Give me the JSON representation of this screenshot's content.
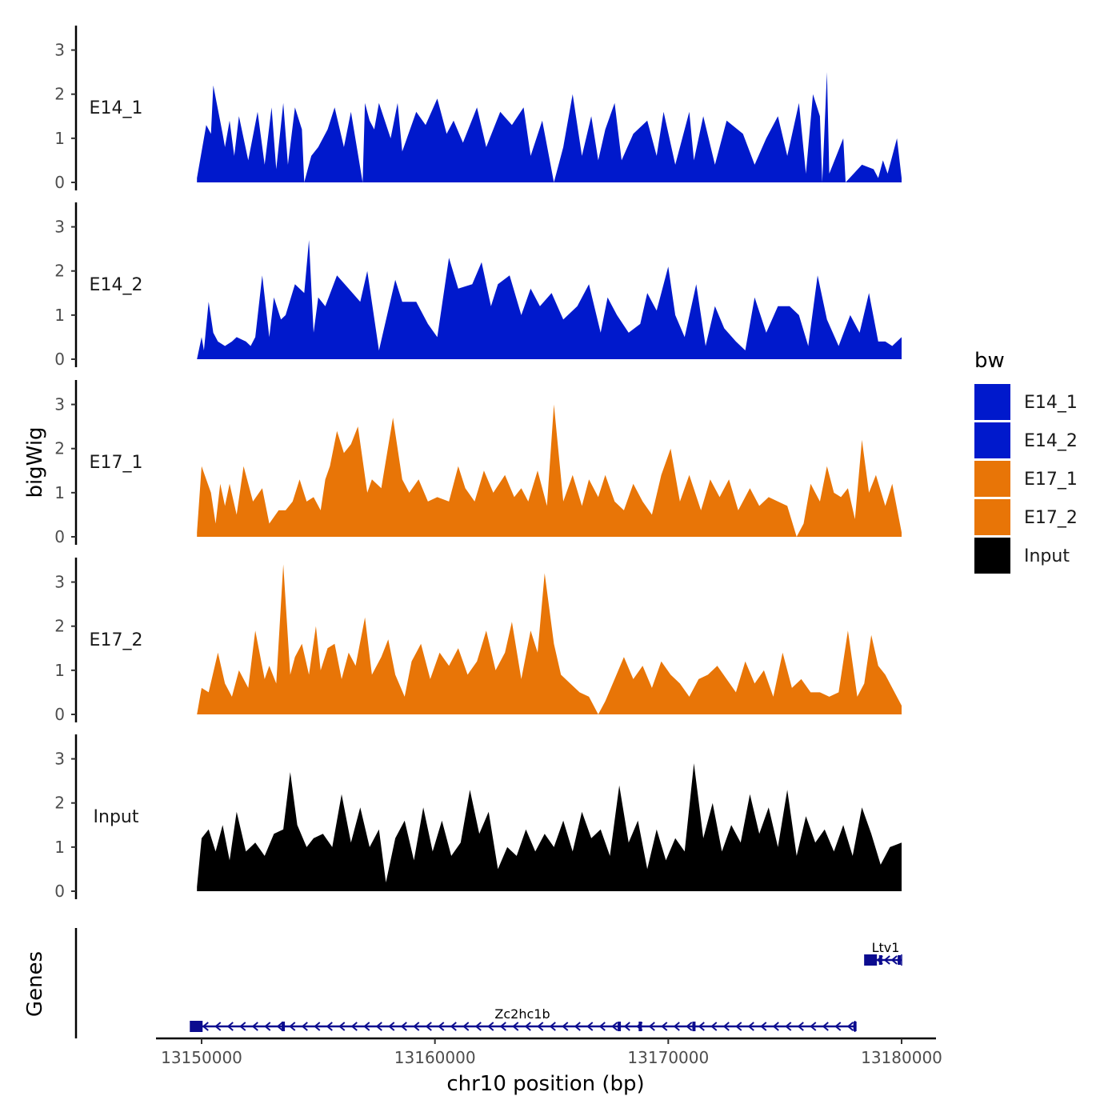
{
  "chart_data": {
    "type": "area",
    "xlabel": "chr10 position (bp)",
    "ylabel": "bigWig",
    "gene_track_label": "Genes",
    "xlim": [
      13149800,
      13180000
    ],
    "ylim": [
      0,
      3.5
    ],
    "x_ticks": [
      13150000,
      13160000,
      13170000,
      13180000
    ],
    "x_tick_labels": [
      "13150000",
      "13160000",
      "13170000",
      "13180000"
    ],
    "y_ticks": [
      0,
      1,
      2,
      3
    ],
    "y_tick_labels": [
      "0",
      "1",
      "2",
      "3"
    ],
    "legend": {
      "title": "bw",
      "position": "right",
      "entries": [
        {
          "label": "E14_1",
          "color": "#0019CC"
        },
        {
          "label": "E14_2",
          "color": "#0019CC"
        },
        {
          "label": "E17_1",
          "color": "#E87507"
        },
        {
          "label": "E17_2",
          "color": "#E87507"
        },
        {
          "label": "Input",
          "color": "#000000"
        }
      ]
    },
    "series": [
      {
        "name": "E14_1",
        "color": "#0019CC",
        "x": [
          13149800,
          13150200,
          13150400,
          13150500,
          13150900,
          13151000,
          13151200,
          13151400,
          13151600,
          13152000,
          13152400,
          13152700,
          13153000,
          13153200,
          13153500,
          13153700,
          13154000,
          13154300,
          13154400,
          13154700,
          13155000,
          13155400,
          13155700,
          13156100,
          13156400,
          13156900,
          13157000,
          13157200,
          13157400,
          13157600,
          13158100,
          13158400,
          13158600,
          13159200,
          13159600,
          13160100,
          13160500,
          13160800,
          13161200,
          13161800,
          13162200,
          13162800,
          13163300,
          13163800,
          13164100,
          13164600,
          13165100,
          13165500,
          13165900,
          13166300,
          13166700,
          13167000,
          13167300,
          13167700,
          13168000,
          13168500,
          13169100,
          13169500,
          13169800,
          13170300,
          13170900,
          13171100,
          13171500,
          13172000,
          13172500,
          13173200,
          13173700,
          13174200,
          13174700,
          13175100,
          13175600,
          13175900,
          13176200,
          13176500,
          13176600,
          13176800,
          13176900,
          13177500,
          13177600,
          13178300,
          13178800,
          13179000,
          13179200,
          13179400,
          13179800,
          13180000
        ],
        "y": [
          0.1,
          1.3,
          1.1,
          2.2,
          1.1,
          0.8,
          1.4,
          0.6,
          1.5,
          0.5,
          1.6,
          0.4,
          1.7,
          0.3,
          1.8,
          0.4,
          1.7,
          1.2,
          0.0,
          0.6,
          0.8,
          1.2,
          1.7,
          0.8,
          1.6,
          0.0,
          1.8,
          1.4,
          1.2,
          1.8,
          1.0,
          1.8,
          0.7,
          1.6,
          1.3,
          1.9,
          1.1,
          1.4,
          0.9,
          1.7,
          0.8,
          1.6,
          1.3,
          1.7,
          0.6,
          1.4,
          0.0,
          0.8,
          2.0,
          0.6,
          1.5,
          0.5,
          1.2,
          1.8,
          0.5,
          1.1,
          1.4,
          0.6,
          1.6,
          0.4,
          1.6,
          0.5,
          1.5,
          0.4,
          1.4,
          1.1,
          0.4,
          1.0,
          1.5,
          0.6,
          1.8,
          0.2,
          2.0,
          1.5,
          0.0,
          2.5,
          0.2,
          1.0,
          0.0,
          0.4,
          0.3,
          0.1,
          0.5,
          0.2,
          1.0,
          0.1
        ]
      },
      {
        "name": "E14_2",
        "color": "#0019CC",
        "x": [
          13149800,
          13150000,
          13150100,
          13150300,
          13150500,
          13150700,
          13151000,
          13151300,
          13151500,
          13151900,
          13152100,
          13152300,
          13152600,
          13152900,
          13153100,
          13153400,
          13153600,
          13154000,
          13154400,
          13154600,
          13154800,
          13155000,
          13155300,
          13155800,
          13156300,
          13156800,
          13157100,
          13157600,
          13158300,
          13158600,
          13159200,
          13159700,
          13160100,
          13160600,
          13161000,
          13161600,
          13162000,
          13162400,
          13162700,
          13163200,
          13163700,
          13164100,
          13164500,
          13165000,
          13165500,
          13166100,
          13166600,
          13167100,
          13167400,
          13167800,
          13168300,
          13168800,
          13169100,
          13169500,
          13170000,
          13170300,
          13170700,
          13171200,
          13171600,
          13172000,
          13172400,
          13172900,
          13173300,
          13173700,
          13174200,
          13174700,
          13175200,
          13175600,
          13176000,
          13176400,
          13176800,
          13177300,
          13177800,
          13178200,
          13178600,
          13179000,
          13179300,
          13179600,
          13180000
        ],
        "y": [
          0.0,
          0.5,
          0.2,
          1.3,
          0.6,
          0.4,
          0.3,
          0.4,
          0.5,
          0.4,
          0.3,
          0.5,
          1.9,
          0.5,
          1.4,
          0.9,
          1.0,
          1.7,
          1.5,
          2.7,
          0.6,
          1.4,
          1.2,
          1.9,
          1.6,
          1.3,
          2.0,
          0.2,
          1.8,
          1.3,
          1.3,
          0.8,
          0.5,
          2.3,
          1.6,
          1.7,
          2.2,
          1.2,
          1.7,
          1.9,
          1.0,
          1.6,
          1.2,
          1.5,
          0.9,
          1.2,
          1.7,
          0.6,
          1.4,
          1.0,
          0.6,
          0.8,
          1.5,
          1.1,
          2.1,
          1.0,
          0.5,
          1.7,
          0.3,
          1.2,
          0.7,
          0.4,
          0.2,
          1.4,
          0.6,
          1.2,
          1.2,
          1.0,
          0.3,
          1.9,
          0.9,
          0.3,
          1.0,
          0.6,
          1.5,
          0.4,
          0.4,
          0.3,
          0.5
        ]
      },
      {
        "name": "E17_1",
        "color": "#E87507",
        "x": [
          13149800,
          13150000,
          13150200,
          13150400,
          13150600,
          13150800,
          13151000,
          13151200,
          13151500,
          13151800,
          13152200,
          13152600,
          13152900,
          13153300,
          13153600,
          13153900,
          13154200,
          13154500,
          13154800,
          13155100,
          13155300,
          13155500,
          13155800,
          13156100,
          13156400,
          13156700,
          13157100,
          13157300,
          13157700,
          13158200,
          13158600,
          13158900,
          13159300,
          13159700,
          13160100,
          13160600,
          13161000,
          13161300,
          13161700,
          13162100,
          13162500,
          13163000,
          13163400,
          13163700,
          13164000,
          13164400,
          13164800,
          13165100,
          13165500,
          13165900,
          13166300,
          13166600,
          13167000,
          13167300,
          13167700,
          13168100,
          13168500,
          13168900,
          13169300,
          13169700,
          13170100,
          13170500,
          13170900,
          13171400,
          13171800,
          13172200,
          13172600,
          13173000,
          13173500,
          13173900,
          13174300,
          13174700,
          13175100,
          13175500,
          13175800,
          13176100,
          13176500,
          13176800,
          13177100,
          13177400,
          13177700,
          13178000,
          13178300,
          13178600,
          13178900,
          13179300,
          13179600,
          13180000
        ],
        "y": [
          0.1,
          1.6,
          1.3,
          1.0,
          0.3,
          1.2,
          0.7,
          1.2,
          0.5,
          1.6,
          0.8,
          1.1,
          0.3,
          0.6,
          0.6,
          0.8,
          1.3,
          0.8,
          0.9,
          0.6,
          1.3,
          1.6,
          2.4,
          1.9,
          2.1,
          2.5,
          1.0,
          1.3,
          1.1,
          2.7,
          1.3,
          1.0,
          1.3,
          0.8,
          0.9,
          0.8,
          1.6,
          1.1,
          0.8,
          1.5,
          1.0,
          1.4,
          0.9,
          1.1,
          0.8,
          1.5,
          0.7,
          3.0,
          0.8,
          1.4,
          0.7,
          1.3,
          0.9,
          1.4,
          0.8,
          0.6,
          1.2,
          0.8,
          0.5,
          1.4,
          2.0,
          0.8,
          1.4,
          0.6,
          1.3,
          0.9,
          1.3,
          0.6,
          1.1,
          0.7,
          0.9,
          0.8,
          0.7,
          0.0,
          0.3,
          1.2,
          0.8,
          1.6,
          1.0,
          0.9,
          1.1,
          0.4,
          2.2,
          1.0,
          1.4,
          0.7,
          1.2,
          0.1
        ]
      },
      {
        "name": "E17_2",
        "color": "#E87507",
        "x": [
          13149800,
          13150000,
          13150300,
          13150700,
          13151000,
          13151300,
          13151600,
          13152000,
          13152300,
          13152700,
          13152900,
          13153200,
          13153500,
          13153800,
          13154000,
          13154300,
          13154600,
          13154900,
          13155100,
          13155400,
          13155700,
          13156000,
          13156300,
          13156600,
          13157000,
          13157300,
          13157700,
          13158000,
          13158300,
          13158700,
          13159000,
          13159400,
          13159800,
          13160200,
          13160600,
          13161000,
          13161400,
          13161800,
          13162200,
          13162600,
          13163000,
          13163300,
          13163700,
          13164100,
          13164400,
          13164700,
          13165100,
          13165400,
          13165800,
          13166200,
          13166600,
          13167000,
          13167300,
          13167700,
          13168100,
          13168500,
          13168900,
          13169300,
          13169700,
          13170100,
          13170500,
          13170900,
          13171300,
          13171700,
          13172100,
          13172500,
          13172900,
          13173300,
          13173700,
          13174100,
          13174500,
          13174900,
          13175300,
          13175700,
          13176100,
          13176500,
          13176900,
          13177300,
          13177700,
          13178100,
          13178400,
          13178700,
          13179000,
          13179300,
          13179600,
          13180000
        ],
        "y": [
          0.0,
          0.6,
          0.5,
          1.4,
          0.7,
          0.4,
          1.0,
          0.6,
          1.9,
          0.8,
          1.1,
          0.7,
          3.4,
          0.9,
          1.3,
          1.6,
          0.9,
          2.0,
          1.0,
          1.5,
          1.6,
          0.8,
          1.4,
          1.1,
          2.2,
          0.9,
          1.3,
          1.7,
          0.9,
          0.4,
          1.2,
          1.6,
          0.8,
          1.4,
          1.1,
          1.5,
          0.9,
          1.2,
          1.9,
          1.0,
          1.4,
          2.1,
          0.8,
          1.9,
          1.4,
          3.2,
          1.6,
          0.9,
          0.7,
          0.5,
          0.4,
          0.0,
          0.3,
          0.8,
          1.3,
          0.8,
          1.1,
          0.6,
          1.2,
          0.9,
          0.7,
          0.4,
          0.8,
          0.9,
          1.1,
          0.8,
          0.5,
          1.2,
          0.7,
          1.0,
          0.4,
          1.4,
          0.6,
          0.8,
          0.5,
          0.5,
          0.4,
          0.5,
          1.9,
          0.4,
          0.7,
          1.8,
          1.1,
          0.9,
          0.6,
          0.2
        ]
      },
      {
        "name": "Input",
        "color": "#000000",
        "x": [
          13149800,
          13150000,
          13150300,
          13150600,
          13150900,
          13151200,
          13151500,
          13151900,
          13152300,
          13152700,
          13153100,
          13153500,
          13153800,
          13154100,
          13154500,
          13154800,
          13155200,
          13155600,
          13156000,
          13156400,
          13156800,
          13157200,
          13157600,
          13157900,
          13158300,
          13158700,
          13159100,
          13159500,
          13159900,
          13160300,
          13160700,
          13161100,
          13161500,
          13161900,
          13162300,
          13162700,
          13163100,
          13163500,
          13163900,
          13164300,
          13164700,
          13165100,
          13165500,
          13165900,
          13166300,
          13166700,
          13167100,
          13167500,
          13167900,
          13168300,
          13168700,
          13169100,
          13169500,
          13169900,
          13170300,
          13170700,
          13171100,
          13171500,
          13171900,
          13172300,
          13172700,
          13173100,
          13173500,
          13173900,
          13174300,
          13174700,
          13175100,
          13175500,
          13175900,
          13176300,
          13176700,
          13177100,
          13177500,
          13177900,
          13178300,
          13178700,
          13179100,
          13179500,
          13180000
        ],
        "y": [
          0.1,
          1.2,
          1.4,
          0.9,
          1.5,
          0.7,
          1.8,
          0.9,
          1.1,
          0.8,
          1.3,
          1.4,
          2.7,
          1.5,
          1.0,
          1.2,
          1.3,
          1.0,
          2.2,
          1.1,
          1.9,
          1.0,
          1.4,
          0.2,
          1.2,
          1.6,
          0.7,
          1.9,
          0.9,
          1.6,
          0.8,
          1.1,
          2.3,
          1.3,
          1.8,
          0.5,
          1.0,
          0.8,
          1.4,
          0.9,
          1.3,
          1.0,
          1.6,
          0.9,
          1.8,
          1.2,
          1.4,
          0.8,
          2.4,
          1.1,
          1.6,
          0.5,
          1.4,
          0.7,
          1.2,
          0.9,
          2.9,
          1.2,
          2.0,
          0.9,
          1.5,
          1.1,
          2.2,
          1.3,
          1.9,
          1.0,
          2.3,
          0.8,
          1.7,
          1.1,
          1.4,
          0.9,
          1.5,
          0.8,
          1.9,
          1.3,
          0.6,
          1.0,
          1.1
        ]
      }
    ],
    "genes": [
      {
        "name": "Zc2hc1b",
        "start": 13149700,
        "end": 13178000,
        "strand": "-",
        "row": 1,
        "exons": [
          13149700,
          13153500,
          13167900,
          13168800,
          13171100,
          13178000
        ]
      },
      {
        "name": "Ltv1",
        "start": 13178600,
        "end": 13180000,
        "strand": "-",
        "row": 2,
        "exons": [
          13178600,
          13179100,
          13179900
        ]
      }
    ]
  }
}
